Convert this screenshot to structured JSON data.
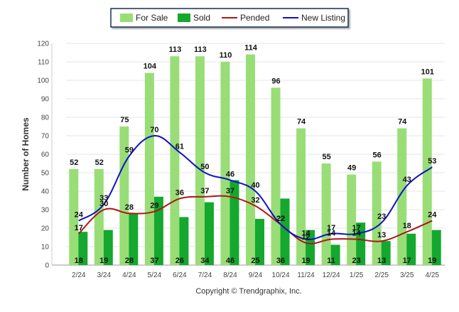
{
  "chart_data": {
    "type": "bar",
    "categories": [
      "2/24",
      "3/24",
      "4/24",
      "5/24",
      "6/24",
      "7/24",
      "8/24",
      "9/24",
      "10/24",
      "11/24",
      "12/24",
      "1/25",
      "2/25",
      "3/25",
      "4/25"
    ],
    "series": [
      {
        "name": "For Sale",
        "kind": "bar",
        "color": "#99dd77",
        "values": [
          52,
          52,
          75,
          104,
          113,
          113,
          110,
          114,
          96,
          74,
          55,
          49,
          56,
          74,
          101
        ]
      },
      {
        "name": "Sold",
        "kind": "bar",
        "color": "#14a82e",
        "values": [
          18,
          19,
          28,
          37,
          26,
          34,
          46,
          25,
          36,
          19,
          11,
          23,
          13,
          17,
          19
        ]
      },
      {
        "name": "Pended",
        "kind": "line",
        "color": "#b01515",
        "values": [
          17,
          30,
          28,
          29,
          36,
          37,
          37,
          32,
          22,
          12,
          14,
          14,
          13,
          18,
          24
        ]
      },
      {
        "name": "New Listing",
        "kind": "line",
        "color": "#1010cc",
        "values": [
          24,
          33,
          59,
          70,
          61,
          50,
          46,
          40,
          22,
          14,
          17,
          17,
          23,
          43,
          53
        ]
      }
    ],
    "ylabel": "Number of Homes",
    "xlabel": "",
    "ylim": [
      0,
      120
    ],
    "yticks": [
      0,
      10,
      20,
      30,
      40,
      50,
      60,
      70,
      80,
      90,
      100,
      110,
      120
    ],
    "grid": true,
    "legend_position": "top-center",
    "footer": "Copyright © Trendgraphix, Inc."
  }
}
